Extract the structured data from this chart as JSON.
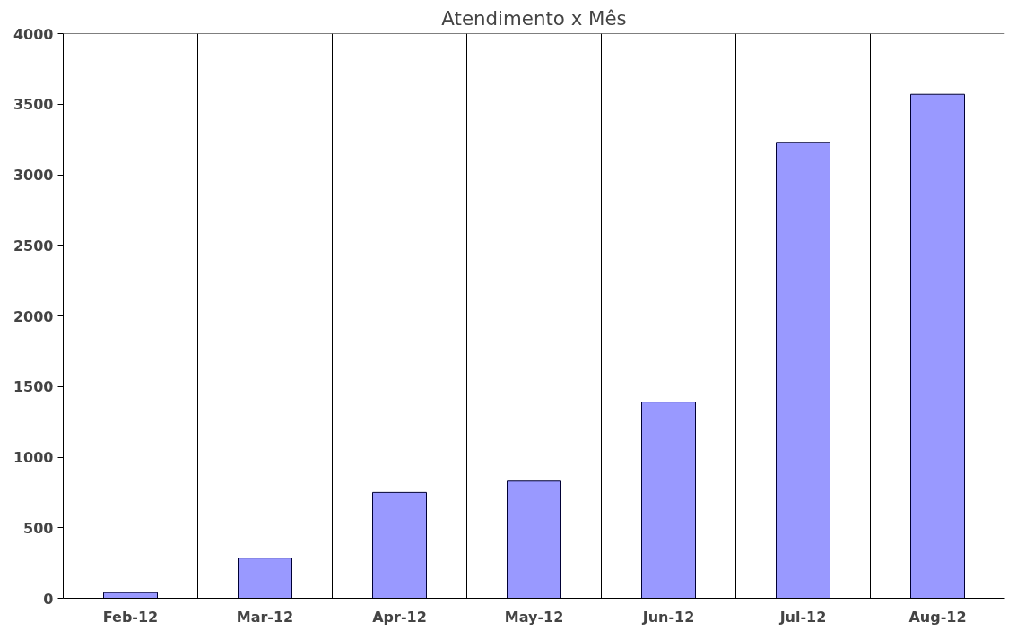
{
  "chart_data": {
    "type": "bar",
    "title": "Atendimento x Mês",
    "categories": [
      "Feb-12",
      "Mar-12",
      "Apr-12",
      "May-12",
      "Jun-12",
      "Jul-12",
      "Aug-12"
    ],
    "values": [
      40,
      285,
      750,
      830,
      1390,
      3230,
      3570
    ],
    "color": "#9999ff",
    "ylim": [
      0,
      4000
    ],
    "yticks": [
      0,
      500,
      1000,
      1500,
      2000,
      2500,
      3000,
      3500,
      4000
    ],
    "grid": "x"
  }
}
